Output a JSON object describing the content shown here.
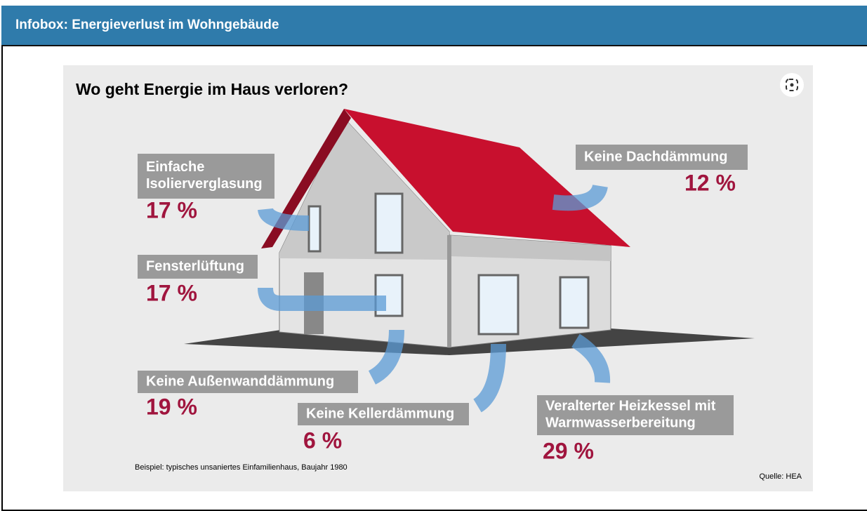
{
  "header": {
    "title": "Infobox: Energieverlust im Wohngebäude"
  },
  "infographic": {
    "title": "Wo geht Energie im Haus verloren?",
    "items": [
      {
        "label": "Einfache Isolierverglasung",
        "share": "17 %"
      },
      {
        "label": "Fensterlüftung",
        "share": "17 %"
      },
      {
        "label": "Keine Außenwanddämmung",
        "share": "19 %"
      },
      {
        "label": "Keine Kellerdämmung",
        "share": "6 %"
      },
      {
        "label": "Veralterter Heizkessel mit Warmwasserbereitung",
        "share": "29 %"
      },
      {
        "label": "Keine Dachdämmung",
        "share": "12 %"
      }
    ],
    "footnote": "Beispiel: typisches unsaniertes Einfamilienhaus, Baujahr 1980",
    "source": "Quelle: HEA"
  }
}
